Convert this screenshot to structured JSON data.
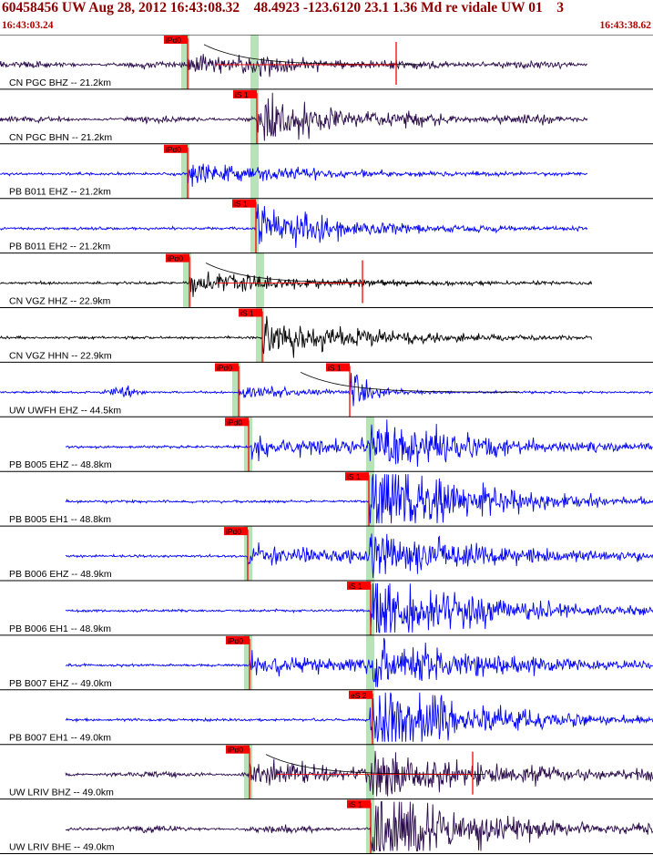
{
  "header": {
    "title": "60458456 UW Aug 28, 2012 16:43:08.32    48.4923 -123.6120 23.1 1.36 Md re vidale UW 01    3",
    "start_time": "16:43:03.24",
    "end_time": "16:43:38.62"
  },
  "colors": {
    "title": "#8b0000",
    "pick_box": "#ff0000",
    "window_band": "#b8e2b8",
    "black_trace": "#000000",
    "blue_trace": "#0000ff",
    "purple_trace": "#2a0a4a"
  },
  "traces": [
    {
      "label": "CN PGC BHZ -- 21.2km",
      "pick": "iPd0",
      "color": "purple",
      "coda": true
    },
    {
      "label": "CN PGC BHN -- 21.2km",
      "pick": "iS 1",
      "color": "purple",
      "coda": false
    },
    {
      "label": "PB B011 EHZ -- 21.2km",
      "pick": "iPd0",
      "color": "blue",
      "coda": false
    },
    {
      "label": "PB B011 EH2 -- 21.2km",
      "pick": "iS 1",
      "color": "blue",
      "coda": false
    },
    {
      "label": "CN VGZ HHZ -- 22.9km",
      "pick": "iPd0",
      "color": "black",
      "coda": true
    },
    {
      "label": "CN VGZ HHN -- 22.9km",
      "pick": "iS 1",
      "color": "black",
      "coda": false
    },
    {
      "label": "UW UWFH EHZ -- 44.5km",
      "pick": "iPd0",
      "pick2": "iS 1",
      "color": "blue",
      "coda": true
    },
    {
      "label": "PB B005 EHZ -- 48.8km",
      "pick": "iPd0",
      "color": "blue",
      "coda": false
    },
    {
      "label": "PB B005 EH1 -- 48.8km",
      "pick": "iS 1",
      "color": "blue",
      "coda": false
    },
    {
      "label": "PB B006 EHZ -- 48.9km",
      "pick": "iPd0",
      "color": "blue",
      "coda": false
    },
    {
      "label": "PB B006 EH1 -- 48.9km",
      "pick": "iS 1",
      "color": "blue",
      "coda": false
    },
    {
      "label": "PB B007 EHZ -- 49.0km",
      "pick": "iPd0",
      "color": "blue",
      "coda": false
    },
    {
      "label": "PB B007 EH1 -- 49.0km",
      "pick": "eS 2",
      "color": "blue",
      "coda": false
    },
    {
      "label": "UW LRIV BHZ -- 49.0km",
      "pick": "iPd0",
      "color": "purple",
      "coda": true
    },
    {
      "label": "UW LRIV BHE -- 49.0km",
      "pick": "iS 1",
      "color": "purple",
      "coda": false
    }
  ]
}
